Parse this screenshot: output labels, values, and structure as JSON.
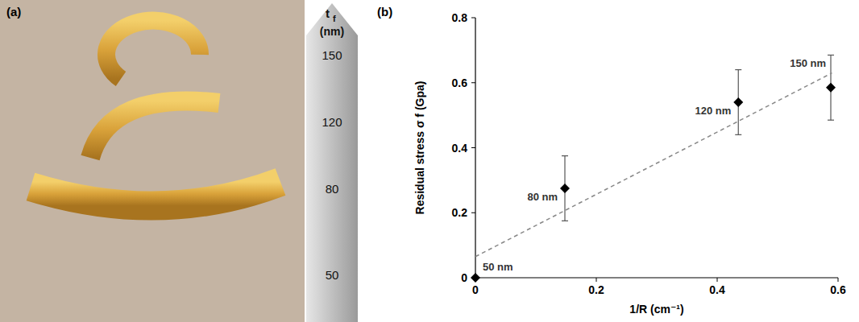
{
  "panel_a": {
    "letter": "(a)",
    "axis_symbol": "t",
    "axis_subscript": "f",
    "axis_unit": "(nm)",
    "thickness_labels": [
      150,
      120,
      80,
      50
    ]
  },
  "chart_data": {
    "type": "scatter",
    "panel_letter": "(b)",
    "x_label": "1/R (cm⁻¹)",
    "y_label": "Residual stress σ f (Gpa)",
    "xlim": [
      0,
      0.6
    ],
    "ylim": [
      0,
      0.8
    ],
    "xticks": [
      0,
      0.2,
      0.4,
      0.6
    ],
    "yticks": [
      0,
      0.2,
      0.4,
      0.6,
      0.8
    ],
    "grid": false,
    "series": [
      {
        "type": "scatter",
        "marker": "diamond",
        "color": "#000000",
        "x": [
          0,
          0.148,
          0.435,
          0.588
        ],
        "values": [
          0,
          0.275,
          0.54,
          0.585
        ],
        "errors": [
          null,
          0.1,
          0.1,
          0.1
        ],
        "point_labels": [
          "50 nm",
          "80 nm",
          "120 nm",
          "150 nm"
        ]
      },
      {
        "type": "line",
        "line_style": "dashed",
        "color": "#888888",
        "x": [
          0,
          0.59
        ],
        "values": [
          0.065,
          0.63
        ]
      }
    ]
  }
}
